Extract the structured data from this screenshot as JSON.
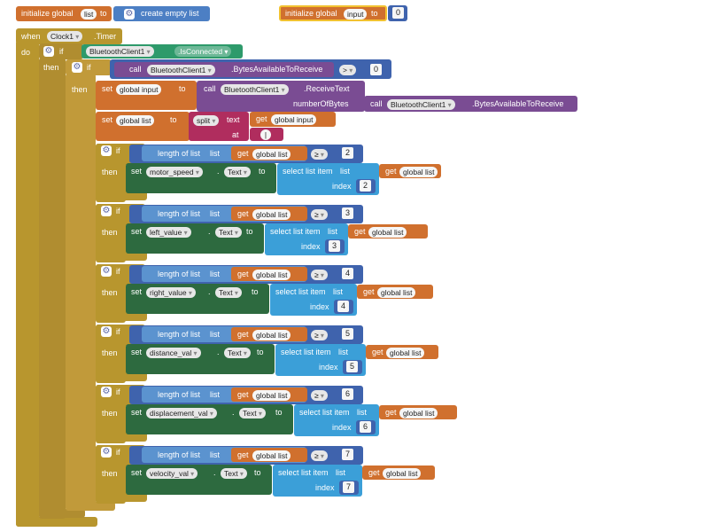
{
  "init_list": {
    "prefix": "initialize global",
    "name": "list",
    "to": "to",
    "value": "create empty list"
  },
  "init_input": {
    "prefix": "initialize global",
    "name": "input",
    "to": "to",
    "value": "0"
  },
  "event": {
    "when": "when",
    "component": "Clock1",
    "event": ".Timer",
    "do": "do"
  },
  "if1": {
    "if": "if",
    "then": "then",
    "component": "BluetoothClient1",
    "prop": ".IsConnected"
  },
  "if2": {
    "if": "if",
    "then": "then",
    "call": "call",
    "component": "BluetoothClient1",
    "method": ".BytesAvailableToReceive",
    "op": ">",
    "value": "0"
  },
  "set_input": {
    "set": "set",
    "var": "global input",
    "to": "to",
    "call": "call",
    "component": "BluetoothClient1",
    "method": ".ReceiveText",
    "param": "numberOfBytes",
    "call2": "call",
    "component2": "BluetoothClient1",
    "method2": ".BytesAvailableToReceive"
  },
  "set_list": {
    "set": "set",
    "var": "global list",
    "to": "to",
    "split": "split",
    "text": "text",
    "get": "get",
    "getvar": "global input",
    "at": "at",
    "sep": "|"
  },
  "conds": [
    {
      "if": "if",
      "then": "then",
      "length": "length of list",
      "list": "list",
      "get": "get",
      "getvar": "global list",
      "op": "≥",
      "num": "2",
      "set": "set",
      "component": "motor_speed",
      "prop": "Text",
      "to": "to",
      "select": "select list item",
      "sellist": "list",
      "get2": "get",
      "getvar2": "global list",
      "index": "index",
      "idx": "2"
    },
    {
      "if": "if",
      "then": "then",
      "length": "length of list",
      "list": "list",
      "get": "get",
      "getvar": "global list",
      "op": "≥",
      "num": "3",
      "set": "set",
      "component": "left_value",
      "prop": "Text",
      "to": "to",
      "select": "select list item",
      "sellist": "list",
      "get2": "get",
      "getvar2": "global list",
      "index": "index",
      "idx": "3"
    },
    {
      "if": "if",
      "then": "then",
      "length": "length of list",
      "list": "list",
      "get": "get",
      "getvar": "global list",
      "op": "≥",
      "num": "4",
      "set": "set",
      "component": "right_value",
      "prop": "Text",
      "to": "to",
      "select": "select list item",
      "sellist": "list",
      "get2": "get",
      "getvar2": "global list",
      "index": "index",
      "idx": "4"
    },
    {
      "if": "if",
      "then": "then",
      "length": "length of list",
      "list": "list",
      "get": "get",
      "getvar": "global list",
      "op": "≥",
      "num": "5",
      "set": "set",
      "component": "distance_val",
      "prop": "Text",
      "to": "to",
      "select": "select list item",
      "sellist": "list",
      "get2": "get",
      "getvar2": "global list",
      "index": "index",
      "idx": "5"
    },
    {
      "if": "if",
      "then": "then",
      "length": "length of list",
      "list": "list",
      "get": "get",
      "getvar": "global list",
      "op": "≥",
      "num": "6",
      "set": "set",
      "component": "displacement_val",
      "prop": "Text",
      "to": "to",
      "select": "select list item",
      "sellist": "list",
      "get2": "get",
      "getvar2": "global list",
      "index": "index",
      "idx": "6"
    },
    {
      "if": "if",
      "then": "then",
      "length": "length of list",
      "list": "list",
      "get": "get",
      "getvar": "global list",
      "op": "≥",
      "num": "7",
      "set": "set",
      "component": "velocity_val",
      "prop": "Text",
      "to": "to",
      "select": "select list item",
      "sellist": "list",
      "get2": "get",
      "getvar2": "global list",
      "index": "index",
      "idx": "7"
    }
  ],
  "colors": {
    "control": "#b8962e",
    "variable": "#d0702e",
    "list": "#4c7fc4",
    "bluetooth": "#7a4c93",
    "text": "#b02d5e",
    "label": "#2d6a3f"
  }
}
